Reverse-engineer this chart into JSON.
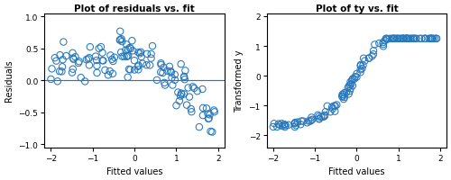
{
  "title_left": "Plot of residuals vs. fit",
  "title_right": "Plot of ty vs. fit",
  "xlabel": "Fitted values",
  "ylabel_left": "Residuals",
  "ylabel_right": "Transformed y",
  "xlim_left": [
    -2.15,
    2.15
  ],
  "xlim_right": [
    -2.15,
    2.15
  ],
  "ylim_left": [
    -1.05,
    1.05
  ],
  "ylim_right": [
    -2.4,
    2.1
  ],
  "xticks": [
    -2,
    -1,
    0,
    1,
    2
  ],
  "yticks_left": [
    -1,
    -0.5,
    0,
    0.5,
    1
  ],
  "yticks_right": [
    -2,
    -1,
    0,
    1,
    2
  ],
  "marker_color": "#2878bd",
  "marker_size": 28,
  "line_color": "#2878bd",
  "background_color": "#ffffff",
  "seed": 7
}
